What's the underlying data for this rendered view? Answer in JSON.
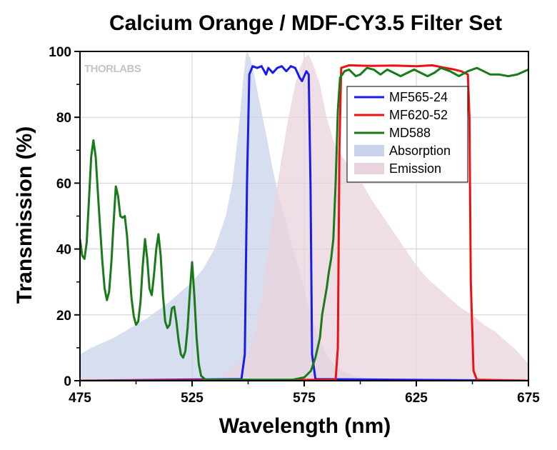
{
  "chart_data": {
    "type": "line",
    "title": "Calcium Orange / MDF-CY3.5 Filter Set",
    "xlabel": "Wavelength (nm)",
    "ylabel": "Transmission (%)",
    "xlim": [
      475,
      675
    ],
    "ylim": [
      0,
      100
    ],
    "xticks": [
      475,
      525,
      575,
      625,
      675
    ],
    "xtick_labels": [
      "475",
      "525",
      "575",
      "625",
      "675"
    ],
    "yticks": [
      0,
      20,
      40,
      60,
      80,
      100
    ],
    "ytick_labels": [
      "0",
      "20",
      "40",
      "60",
      "80",
      "100"
    ],
    "grid": true,
    "legend_position": "top-right",
    "watermark": "THORLABS",
    "series": [
      {
        "name": "MF565-24",
        "kind": "line",
        "color": "#1a1aee",
        "points": [
          [
            475,
            0
          ],
          [
            547,
            0.5
          ],
          [
            548.5,
            8
          ],
          [
            549.5,
            60
          ],
          [
            550.5,
            93
          ],
          [
            552,
            95.5
          ],
          [
            554,
            95
          ],
          [
            556,
            95.5
          ],
          [
            558,
            93
          ],
          [
            559,
            95
          ],
          [
            561,
            93.5
          ],
          [
            563,
            95
          ],
          [
            565,
            95.5
          ],
          [
            567,
            94
          ],
          [
            569,
            95.5
          ],
          [
            571,
            95
          ],
          [
            573,
            92
          ],
          [
            574,
            91
          ],
          [
            576,
            94
          ],
          [
            577,
            93
          ],
          [
            577.8,
            60
          ],
          [
            578.5,
            8
          ],
          [
            580,
            0.5
          ],
          [
            675,
            0
          ]
        ]
      },
      {
        "name": "MF620-52",
        "kind": "line",
        "color": "#ee1111",
        "points": [
          [
            475,
            0
          ],
          [
            589,
            0.3
          ],
          [
            590,
            10
          ],
          [
            590.7,
            70
          ],
          [
            591.5,
            95
          ],
          [
            595,
            95.8
          ],
          [
            605,
            95.6
          ],
          [
            615,
            95.7
          ],
          [
            625,
            95.5
          ],
          [
            632,
            95.8
          ],
          [
            638,
            95
          ],
          [
            642,
            94.5
          ],
          [
            645,
            94
          ],
          [
            648,
            93
          ],
          [
            648.7,
            80
          ],
          [
            649.3,
            30
          ],
          [
            650.5,
            3
          ],
          [
            652,
            0.3
          ],
          [
            675,
            0
          ]
        ]
      },
      {
        "name": "MD588",
        "kind": "line",
        "color": "#1a7a1a",
        "points": [
          [
            475,
            43
          ],
          [
            476,
            38
          ],
          [
            477,
            37
          ],
          [
            478,
            42
          ],
          [
            479,
            55
          ],
          [
            480,
            68
          ],
          [
            481,
            73
          ],
          [
            482,
            68
          ],
          [
            483,
            57
          ],
          [
            484,
            46
          ],
          [
            485,
            36
          ],
          [
            486,
            28
          ],
          [
            487,
            24.5
          ],
          [
            488,
            27
          ],
          [
            489,
            36
          ],
          [
            490,
            48
          ],
          [
            491,
            59
          ],
          [
            492,
            56
          ],
          [
            493,
            50
          ],
          [
            494,
            49.5
          ],
          [
            495,
            50
          ],
          [
            496,
            44
          ],
          [
            497,
            34
          ],
          [
            498,
            25
          ],
          [
            499,
            19.5
          ],
          [
            500,
            17
          ],
          [
            501,
            18
          ],
          [
            502,
            24
          ],
          [
            503,
            35
          ],
          [
            504,
            43
          ],
          [
            505,
            37
          ],
          [
            506,
            28
          ],
          [
            507,
            26
          ],
          [
            508,
            32
          ],
          [
            509,
            40
          ],
          [
            510,
            44.5
          ],
          [
            511,
            38
          ],
          [
            512,
            26
          ],
          [
            513,
            18
          ],
          [
            514,
            16
          ],
          [
            515,
            17
          ],
          [
            516,
            22
          ],
          [
            517,
            22.5
          ],
          [
            518,
            18
          ],
          [
            519,
            12
          ],
          [
            520,
            8
          ],
          [
            521,
            7
          ],
          [
            522,
            9
          ],
          [
            523,
            16
          ],
          [
            524,
            27
          ],
          [
            525,
            36
          ],
          [
            526,
            26
          ],
          [
            527,
            13
          ],
          [
            528,
            5
          ],
          [
            529,
            1.5
          ],
          [
            531,
            0.3
          ],
          [
            570,
            0.3
          ],
          [
            575,
            1
          ],
          [
            578,
            3
          ],
          [
            580,
            7
          ],
          [
            582,
            13
          ],
          [
            583,
            20
          ],
          [
            585,
            28
          ],
          [
            586,
            33
          ],
          [
            587,
            37
          ],
          [
            588,
            43
          ],
          [
            589,
            60
          ],
          [
            590,
            82
          ],
          [
            591,
            92
          ],
          [
            593,
            94
          ],
          [
            595,
            94.5
          ],
          [
            598,
            92.5
          ],
          [
            600,
            93
          ],
          [
            603,
            95
          ],
          [
            606,
            94.5
          ],
          [
            609,
            93
          ],
          [
            612,
            94.5
          ],
          [
            615,
            93.5
          ],
          [
            618,
            92.5
          ],
          [
            621,
            93.5
          ],
          [
            624,
            94.5
          ],
          [
            627,
            93.5
          ],
          [
            630,
            92.5
          ],
          [
            633,
            93.5
          ],
          [
            636,
            95
          ],
          [
            640,
            94
          ],
          [
            644,
            92.5
          ],
          [
            648,
            94
          ],
          [
            652,
            95
          ],
          [
            655,
            94
          ],
          [
            658,
            93
          ],
          [
            662,
            93
          ],
          [
            666,
            92.5
          ],
          [
            670,
            93
          ],
          [
            675,
            94.5
          ]
        ]
      },
      {
        "name": "Absorption",
        "kind": "area",
        "color": "#c9d3ea",
        "points": [
          [
            475,
            8
          ],
          [
            480,
            10
          ],
          [
            485,
            11.5
          ],
          [
            490,
            13
          ],
          [
            495,
            15
          ],
          [
            500,
            17
          ],
          [
            505,
            19
          ],
          [
            510,
            21.5
          ],
          [
            515,
            24
          ],
          [
            520,
            27
          ],
          [
            525,
            30
          ],
          [
            530,
            34
          ],
          [
            535,
            40
          ],
          [
            540,
            50
          ],
          [
            543,
            60
          ],
          [
            546,
            78
          ],
          [
            548,
            93
          ],
          [
            549,
            99
          ],
          [
            549.5,
            100
          ],
          [
            551,
            98
          ],
          [
            553,
            92
          ],
          [
            555,
            85
          ],
          [
            558,
            75
          ],
          [
            561,
            64
          ],
          [
            564,
            55
          ],
          [
            567,
            48
          ],
          [
            570,
            40
          ],
          [
            573,
            33
          ],
          [
            576,
            25
          ],
          [
            579,
            18
          ],
          [
            582,
            12
          ],
          [
            585,
            8
          ],
          [
            588,
            5
          ],
          [
            592,
            3
          ],
          [
            597,
            1.5
          ],
          [
            605,
            0.5
          ],
          [
            615,
            0
          ]
        ]
      },
      {
        "name": "Emission",
        "kind": "area",
        "color": "#ead3de",
        "points": [
          [
            535,
            0
          ],
          [
            540,
            2
          ],
          [
            545,
            5
          ],
          [
            550,
            8
          ],
          [
            553,
            15
          ],
          [
            556,
            25
          ],
          [
            559,
            40
          ],
          [
            562,
            55
          ],
          [
            565,
            68
          ],
          [
            568,
            80
          ],
          [
            571,
            90
          ],
          [
            573,
            95
          ],
          [
            575,
            98
          ],
          [
            577,
            99
          ],
          [
            579,
            96
          ],
          [
            582,
            90
          ],
          [
            585,
            80
          ],
          [
            588,
            73
          ],
          [
            591,
            69
          ],
          [
            595,
            65
          ],
          [
            600,
            61
          ],
          [
            605,
            55
          ],
          [
            610,
            50
          ],
          [
            615,
            45
          ],
          [
            620,
            40
          ],
          [
            625,
            35
          ],
          [
            630,
            31
          ],
          [
            635,
            28
          ],
          [
            640,
            25
          ],
          [
            645,
            22
          ],
          [
            650,
            20
          ],
          [
            655,
            17
          ],
          [
            660,
            15
          ],
          [
            665,
            12
          ],
          [
            670,
            9
          ],
          [
            675,
            5
          ]
        ]
      }
    ]
  }
}
